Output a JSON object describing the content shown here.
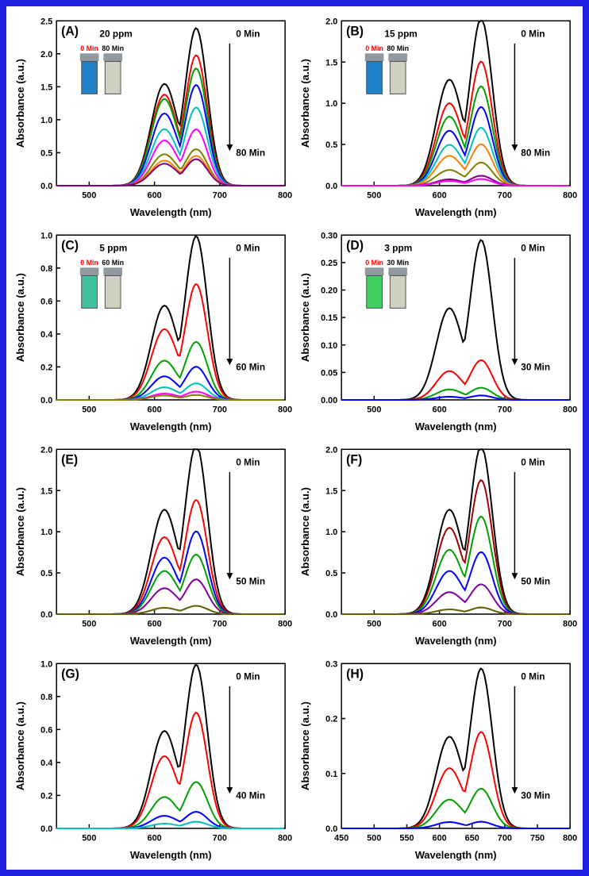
{
  "figure": {
    "border_color": "#2020e0",
    "background": "#ffffff",
    "panels": [
      {
        "id": "A",
        "label": "(A)",
        "ppm": "20 ppm",
        "xlabel": "Wavelength (nm)",
        "ylabel": "Absorbance (a.u.)",
        "xlim": [
          450,
          800
        ],
        "xticks": [
          500,
          600,
          700,
          800
        ],
        "ylim": [
          0,
          2.5
        ],
        "yticks": [
          0.0,
          0.5,
          1.0,
          1.5,
          2.0,
          2.5
        ],
        "top_annot": "0 Min",
        "bottom_annot": "80 Min",
        "vials": {
          "left_label": "0 Min",
          "left_label_color": "#ff0000",
          "left_color": "#2080c8",
          "right_label": "80 Min",
          "right_label_color": "#000000",
          "right_color": "#d0d0c0"
        },
        "series": [
          {
            "color": "#000000",
            "peak": 2.38,
            "shoulder": 1.62
          },
          {
            "color": "#ff0000",
            "peak": 1.97,
            "shoulder": 1.45
          },
          {
            "color": "#00a000",
            "peak": 1.77,
            "shoulder": 1.38
          },
          {
            "color": "#0000ff",
            "peak": 1.52,
            "shoulder": 1.15
          },
          {
            "color": "#00c0c0",
            "peak": 1.18,
            "shoulder": 0.9
          },
          {
            "color": "#ff00ff",
            "peak": 0.85,
            "shoulder": 0.72
          },
          {
            "color": "#808000",
            "peak": 0.55,
            "shoulder": 0.5
          },
          {
            "color": "#ff8000",
            "peak": 0.45,
            "shoulder": 0.4
          },
          {
            "color": "#800080",
            "peak": 0.4,
            "shoulder": 0.35
          }
        ],
        "line_width": 2
      },
      {
        "id": "B",
        "label": "(B)",
        "ppm": "15 ppm",
        "xlabel": "Wavelength (nm)",
        "ylabel": "Absorbance (a.u.)",
        "xlim": [
          450,
          800
        ],
        "xticks": [
          500,
          600,
          700,
          800
        ],
        "ylim": [
          0,
          2.0
        ],
        "yticks": [
          0.0,
          0.5,
          1.0,
          1.5,
          2.0
        ],
        "top_annot": "0 Min",
        "bottom_annot": "80 Min",
        "vials": {
          "left_label": "0 Min",
          "left_label_color": "#ff0000",
          "left_color": "#2080c8",
          "right_label": "80 Min",
          "right_label_color": "#000000",
          "right_color": "#d0d0c0"
        },
        "series": [
          {
            "color": "#000000",
            "peak": 2.02,
            "shoulder": 1.35
          },
          {
            "color": "#ff0000",
            "peak": 1.5,
            "shoulder": 1.05
          },
          {
            "color": "#00a000",
            "peak": 1.2,
            "shoulder": 0.88
          },
          {
            "color": "#0000ff",
            "peak": 0.95,
            "shoulder": 0.7
          },
          {
            "color": "#00c0c0",
            "peak": 0.7,
            "shoulder": 0.52
          },
          {
            "color": "#ff8000",
            "peak": 0.5,
            "shoulder": 0.38
          },
          {
            "color": "#808000",
            "peak": 0.28,
            "shoulder": 0.2
          },
          {
            "color": "#800080",
            "peak": 0.12,
            "shoulder": 0.08
          },
          {
            "color": "#ff00ff",
            "peak": 0.08,
            "shoulder": 0.06
          }
        ],
        "line_width": 2
      },
      {
        "id": "C",
        "label": "(C)",
        "ppm": "5 ppm",
        "xlabel": "Wavelength (nm)",
        "ylabel": "Absorbance (a.u.)",
        "xlim": [
          450,
          800
        ],
        "xticks": [
          500,
          600,
          700,
          800
        ],
        "ylim": [
          0,
          1.0
        ],
        "yticks": [
          0.0,
          0.2,
          0.4,
          0.6,
          0.8,
          1.0
        ],
        "top_annot": "0 Min",
        "bottom_annot": "60 Min",
        "vials": {
          "left_label": "0 Min",
          "left_label_color": "#ff0000",
          "left_color": "#40c0a0",
          "right_label": "60 Min",
          "right_label_color": "#000000",
          "right_color": "#d0d0c0"
        },
        "series": [
          {
            "color": "#000000",
            "peak": 0.99,
            "shoulder": 0.6
          },
          {
            "color": "#ff0000",
            "peak": 0.7,
            "shoulder": 0.45
          },
          {
            "color": "#00a000",
            "peak": 0.35,
            "shoulder": 0.25
          },
          {
            "color": "#0000ff",
            "peak": 0.2,
            "shoulder": 0.15
          },
          {
            "color": "#00c0c0",
            "peak": 0.1,
            "shoulder": 0.08
          },
          {
            "color": "#ff00ff",
            "peak": 0.05,
            "shoulder": 0.04
          },
          {
            "color": "#808000",
            "peak": 0.03,
            "shoulder": 0.028
          }
        ],
        "line_width": 2
      },
      {
        "id": "D",
        "label": "(D)",
        "ppm": "3 ppm",
        "xlabel": "Wavelength (nm)",
        "ylabel": "Absorbance (a.u.)",
        "xlim": [
          450,
          800
        ],
        "xticks": [
          500,
          600,
          700,
          800
        ],
        "ylim": [
          0,
          0.3
        ],
        "yticks": [
          0.0,
          0.05,
          0.1,
          0.15,
          0.2,
          0.25,
          0.3
        ],
        "ytick_format": 2,
        "top_annot": "0 Min",
        "bottom_annot": "30 Min",
        "vials": {
          "left_label": "0 Min",
          "left_label_color": "#ff0000",
          "left_color": "#40d060",
          "right_label": "30 Min",
          "right_label_color": "#000000",
          "right_color": "#d0d0c0"
        },
        "series": [
          {
            "color": "#000000",
            "peak": 0.29,
            "shoulder": 0.175
          },
          {
            "color": "#ff0000",
            "peak": 0.072,
            "shoulder": 0.055
          },
          {
            "color": "#00a000",
            "peak": 0.022,
            "shoulder": 0.02
          },
          {
            "color": "#0000ff",
            "peak": 0.008,
            "shoulder": 0.006
          }
        ],
        "line_width": 2
      },
      {
        "id": "E",
        "label": "(E)",
        "xlabel": "Wavelength (nm)",
        "ylabel": "Absorbance (a.u.)",
        "xlim": [
          450,
          800
        ],
        "xticks": [
          500,
          600,
          700,
          800
        ],
        "ylim": [
          0,
          2.0
        ],
        "yticks": [
          0.0,
          0.5,
          1.0,
          1.5,
          2.0
        ],
        "top_annot": "0 Min",
        "bottom_annot": "50 Min",
        "series": [
          {
            "color": "#000000",
            "peak": 2.05,
            "shoulder": 1.33
          },
          {
            "color": "#ff0000",
            "peak": 1.38,
            "shoulder": 0.98
          },
          {
            "color": "#0000ff",
            "peak": 1.0,
            "shoulder": 0.72
          },
          {
            "color": "#00a000",
            "peak": 0.72,
            "shoulder": 0.55
          },
          {
            "color": "#8000a0",
            "peak": 0.42,
            "shoulder": 0.33
          },
          {
            "color": "#606000",
            "peak": 0.1,
            "shoulder": 0.08
          }
        ],
        "line_width": 2
      },
      {
        "id": "F",
        "label": "(F)",
        "xlabel": "Wavelength (nm)",
        "ylabel": "Absorbance (a.u.)",
        "xlim": [
          450,
          800
        ],
        "xticks": [
          500,
          600,
          700,
          800
        ],
        "ylim": [
          0,
          2.0
        ],
        "yticks": [
          0.0,
          0.5,
          1.0,
          1.5,
          2.0
        ],
        "top_annot": "0 Min",
        "bottom_annot": "50 Min",
        "series": [
          {
            "color": "#000000",
            "peak": 2.03,
            "shoulder": 1.33
          },
          {
            "color": "#a00000",
            "peak": 1.62,
            "shoulder": 1.1
          },
          {
            "color": "#00a000",
            "peak": 1.18,
            "shoulder": 0.82
          },
          {
            "color": "#0000ff",
            "peak": 0.75,
            "shoulder": 0.55
          },
          {
            "color": "#8000a0",
            "peak": 0.36,
            "shoulder": 0.28
          },
          {
            "color": "#606000",
            "peak": 0.08,
            "shoulder": 0.06
          }
        ],
        "line_width": 2
      },
      {
        "id": "G",
        "label": "(G)",
        "xlabel": "Wavelength (nm)",
        "ylabel": "Absorbance (a.u.)",
        "xlim": [
          450,
          800
        ],
        "xticks": [
          500,
          600,
          700,
          800
        ],
        "ylim": [
          0,
          1.0
        ],
        "yticks": [
          0.0,
          0.2,
          0.4,
          0.6,
          0.8,
          1.0
        ],
        "top_annot": "0 Min",
        "bottom_annot": "40 Min",
        "series": [
          {
            "color": "#000000",
            "peak": 0.99,
            "shoulder": 0.62
          },
          {
            "color": "#ff0000",
            "peak": 0.7,
            "shoulder": 0.46
          },
          {
            "color": "#00a000",
            "peak": 0.28,
            "shoulder": 0.2
          },
          {
            "color": "#0000ff",
            "peak": 0.1,
            "shoulder": 0.08
          },
          {
            "color": "#00c0c0",
            "peak": 0.04,
            "shoulder": 0.03
          }
        ],
        "line_width": 2
      },
      {
        "id": "H",
        "label": "(H)",
        "xlabel": "Wavelength (nm)",
        "ylabel": "Absorbance (a.u.)",
        "xlim": [
          450,
          800
        ],
        "xticks": [
          450,
          500,
          550,
          600,
          650,
          700,
          750,
          800
        ],
        "ylim": [
          0,
          0.3
        ],
        "yticks": [
          0.0,
          0.1,
          0.2,
          0.3
        ],
        "top_annot": "0 Min",
        "bottom_annot": "30 Min",
        "series": [
          {
            "color": "#000000",
            "peak": 0.29,
            "shoulder": 0.175
          },
          {
            "color": "#ff0000",
            "peak": 0.175,
            "shoulder": 0.115
          },
          {
            "color": "#00a000",
            "peak": 0.072,
            "shoulder": 0.055
          },
          {
            "color": "#0000ff",
            "peak": 0.012,
            "shoulder": 0.012
          }
        ],
        "line_width": 2
      }
    ]
  }
}
